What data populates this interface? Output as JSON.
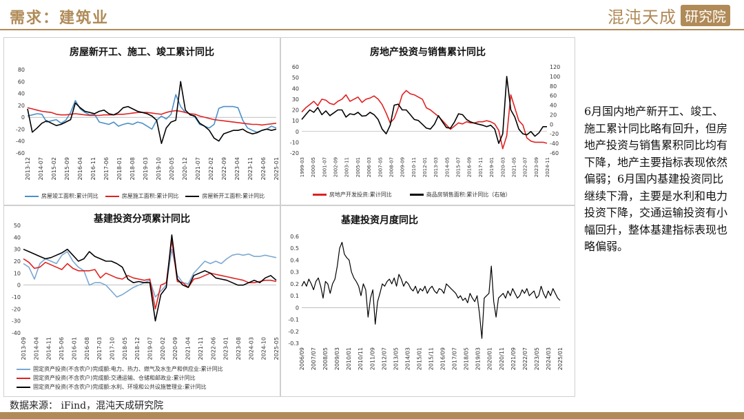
{
  "header": {
    "title": "需求：建筑业",
    "brand_main": "混沌天成",
    "brand_box": "研究院"
  },
  "side_text": "6月国内地产新开工、竣工、施工累计同比略有回升，但房地产投资与销售累积同比均有下降，地产主要指标表现依然偏弱；6月国内基建投资同比继续下滑，主要是水利和电力投资下降，交通运输投资有小幅回升，整体基建指标表现也略偏弱。",
  "source": "数据来源： iFind，混沌天成研究院",
  "colors": {
    "accent": "#b08a57",
    "blue": "#4a90c8",
    "red": "#e02020",
    "black": "#000000",
    "lightblue": "#7aa8d2"
  },
  "chart_data": [
    {
      "type": "line",
      "title": "房屋新开工、施工、竣工累计同比",
      "ylim": [
        -60,
        80
      ],
      "yticks": [
        -60,
        -40,
        -20,
        0,
        20,
        40,
        60,
        80
      ],
      "x_tick_labels": [
        "2013-12",
        "2014-07",
        "2015-02",
        "2015-09",
        "2016-04",
        "2016-11",
        "2017-06",
        "2018-01",
        "2018-08",
        "2019-03",
        "2019-10",
        "2020-05",
        "2020-12",
        "2021-07",
        "2022-02",
        "2022-09",
        "2023-04",
        "2023-11",
        "2024-06",
        "2025-01"
      ],
      "series": [
        {
          "name": "房屋竣工面积:累计同比",
          "color": "#4a90c8",
          "values": [
            2,
            4,
            6,
            5,
            -8,
            -6,
            -4,
            -10,
            -5,
            8,
            28,
            14,
            8,
            4,
            5,
            -8,
            -10,
            -12,
            -8,
            -15,
            -12,
            -10,
            -12,
            -8,
            -10,
            -15,
            -20,
            -5,
            2,
            -3,
            5,
            38,
            18,
            8,
            6,
            0,
            -12,
            -15,
            -18,
            -12,
            15,
            18,
            18,
            18,
            16,
            -5,
            -18,
            -22,
            -25,
            -22,
            -20,
            -15,
            -18
          ]
        },
        {
          "name": "房屋施工面积:累计同比",
          "color": "#e02020",
          "values": [
            16,
            14,
            12,
            10,
            9,
            8,
            5,
            4,
            4,
            5,
            6,
            5,
            4,
            3,
            3,
            3,
            4,
            4,
            4,
            5,
            5,
            6,
            7,
            8,
            8,
            8,
            7,
            6,
            5,
            8,
            10,
            11,
            10,
            8,
            6,
            5,
            2,
            0,
            -2,
            -4,
            -5,
            -6,
            -7,
            -8,
            -9,
            -10,
            -11,
            -12,
            -12,
            -13,
            -12,
            -11,
            -10
          ]
        },
        {
          "name": "房屋新开工面积:累计同比",
          "color": "#000000",
          "values": [
            14,
            -25,
            -18,
            -10,
            -6,
            -10,
            -14,
            -12,
            -8,
            -4,
            24,
            16,
            10,
            8,
            6,
            10,
            12,
            6,
            4,
            8,
            16,
            18,
            14,
            10,
            8,
            6,
            2,
            -5,
            -44,
            -18,
            -8,
            -5,
            60,
            12,
            4,
            2,
            -10,
            -15,
            -22,
            -35,
            -40,
            -28,
            -25,
            -22,
            -22,
            -20,
            -25,
            -28,
            -26,
            -22,
            -20,
            -22,
            -20
          ]
        }
      ]
    },
    {
      "type": "line",
      "title": "房地产投资与销售累计同比",
      "ylim": [
        -20,
        60
      ],
      "yticks": [
        -20,
        -10,
        0,
        10,
        20,
        30,
        40,
        50,
        60
      ],
      "y2lim": [
        -60,
        120
      ],
      "y2ticks": [
        -60,
        -40,
        -20,
        0,
        20,
        40,
        60,
        80,
        100,
        120
      ],
      "x_tick_labels": [
        "1999-03",
        "2000-05",
        "2001-07",
        "2002-09",
        "2003-11",
        "2005-01",
        "2006-03",
        "2007-05",
        "2008-07",
        "2009-09",
        "2010-11",
        "2012-01",
        "2013-03",
        "2014-05",
        "2015-07",
        "2016-09",
        "2017-11",
        "2019-01",
        "2020-03",
        "2021-05",
        "2022-07",
        "2023-09",
        "2024-11"
      ],
      "series": [
        {
          "name": "房地产开发投资:累计同比",
          "color": "#e02020",
          "axis": "left",
          "values": [
            18,
            22,
            25,
            28,
            24,
            30,
            29,
            26,
            25,
            28,
            30,
            34,
            28,
            30,
            32,
            27,
            30,
            31,
            33,
            30,
            25,
            17,
            8,
            12,
            22,
            34,
            38,
            35,
            34,
            32,
            30,
            22,
            20,
            17,
            14,
            10,
            6,
            2,
            5,
            8,
            7,
            9,
            8,
            8,
            9,
            9,
            10,
            9,
            7,
            1,
            -16,
            -4,
            34,
            22,
            10,
            6,
            -6,
            -9,
            -10,
            -10,
            -10,
            -11
          ]
        },
        {
          "name": "商品房销售面积:累计同比（右轴）",
          "color": "#000000",
          "axis": "right",
          "values": [
            10,
            20,
            30,
            25,
            35,
            20,
            28,
            18,
            24,
            30,
            30,
            15,
            22,
            20,
            25,
            17,
            18,
            25,
            20,
            10,
            -10,
            -20,
            -2,
            40,
            42,
            30,
            30,
            20,
            10,
            8,
            0,
            -8,
            -10,
            0,
            18,
            5,
            -7,
            -8,
            5,
            22,
            20,
            10,
            5,
            2,
            0,
            -2,
            -5,
            -2,
            -10,
            -40,
            -20,
            100,
            30,
            15,
            -10,
            -20,
            -22,
            -15,
            -25,
            -18,
            -5,
            -5
          ]
        }
      ]
    },
    {
      "type": "line",
      "title": "基建投资分项累计同比",
      "ylim": [
        -40,
        50
      ],
      "yticks": [
        -40,
        -30,
        -20,
        -10,
        0,
        10,
        20,
        30,
        40,
        50
      ],
      "x_tick_labels": [
        "2013-09",
        "2014-04",
        "2014-11",
        "2015-06",
        "2016-01",
        "2016-08",
        "2017-03",
        "2017-10",
        "2018-05",
        "2018-12",
        "2019-07",
        "2020-02",
        "2020-09",
        "2021-04",
        "2021-11",
        "2022-06",
        "2023-01",
        "2023-08",
        "2024-03",
        "2024-10",
        "2025-05"
      ],
      "series": [
        {
          "name": "固定资产投资(不含农户)完成额:电力、热力、燃气及水生产和供应业:累计同比",
          "color": "#7aa8d2",
          "values": [
            18,
            15,
            5,
            18,
            22,
            20,
            18,
            25,
            28,
            20,
            15,
            12,
            0,
            2,
            2,
            0,
            -5,
            -10,
            -8,
            -5,
            -2,
            0,
            2,
            4,
            -10,
            -5,
            0,
            30,
            8,
            2,
            1,
            10,
            15,
            20,
            18,
            20,
            18,
            22,
            25,
            26,
            25,
            26,
            24,
            24,
            25,
            24,
            23
          ]
        },
        {
          "name": "固定资产投资(不含农户)完成额:交通运输、仓储和邮政业:累计同比",
          "color": "#e02020",
          "values": [
            22,
            19,
            14,
            15,
            19,
            17,
            15,
            13,
            18,
            14,
            12,
            12,
            12,
            13,
            6,
            10,
            8,
            6,
            5,
            8,
            6,
            5,
            4,
            5,
            -20,
            0,
            2,
            38,
            3,
            2,
            -2,
            5,
            6,
            8,
            10,
            9,
            8,
            7,
            6,
            5,
            4,
            2,
            2,
            3,
            4,
            4,
            3
          ]
        },
        {
          "name": "固定资产投资(不含农户)完成额:水利、环境和公共设施管理业:累计同比",
          "color": "#000000",
          "values": [
            30,
            28,
            26,
            24,
            22,
            23,
            25,
            27,
            30,
            25,
            20,
            22,
            28,
            24,
            22,
            20,
            20,
            18,
            15,
            5,
            2,
            3,
            2,
            2,
            -30,
            -8,
            -2,
            42,
            5,
            0,
            -2,
            8,
            10,
            12,
            10,
            6,
            5,
            4,
            2,
            0,
            0,
            2,
            4,
            2,
            6,
            8,
            4
          ]
        }
      ]
    },
    {
      "type": "line",
      "title": "基建投资月度同比",
      "ylim": [
        -0.3,
        0.6
      ],
      "yticks": [
        -0.3,
        -0.2,
        -0.1,
        0,
        0.1,
        0.2,
        0.3,
        0.4,
        0.5,
        0.6
      ],
      "x_tick_labels": [
        "2006/09",
        "2007/07",
        "2008/05",
        "2009/03",
        "2010/01",
        "2010/11",
        "2011/09",
        "2012/07",
        "2013/05",
        "2014/03",
        "2015/01",
        "2015/11",
        "2016/09",
        "2017/07",
        "2018/05",
        "2019/03",
        "2020/01",
        "2020/11",
        "2021/09",
        "2022/07",
        "2023/05",
        "2024/03",
        "2025/01"
      ],
      "series": [
        {
          "name": "",
          "color": "#000000",
          "values": [
            0.18,
            0.22,
            0.18,
            0.24,
            0.2,
            0.15,
            0.22,
            0.25,
            0.18,
            0.08,
            0.22,
            0.2,
            0.12,
            0.2,
            0.24,
            0.35,
            0.5,
            0.55,
            0.45,
            0.42,
            0.4,
            0.3,
            0.25,
            0.22,
            0.18,
            0.1,
            0.2,
            0.15,
            -0.08,
            0.08,
            0.15,
            -0.14,
            0.05,
            0.12,
            0.2,
            0.18,
            0.22,
            0.24,
            0.2,
            0.25,
            0.18,
            0.28,
            0.24,
            0.18,
            0.22,
            0.2,
            0.16,
            0.14,
            0.18,
            0.12,
            0.16,
            0.14,
            0.18,
            0.12,
            0.16,
            0.18,
            0.14,
            0.12,
            0.16,
            0.15,
            0.12,
            0.2,
            0.18,
            0.16,
            0.14,
            0.12,
            0.08,
            0.1,
            0.06,
            0.08,
            0.04,
            0.12,
            0.08,
            0.05,
            0.1,
            -0.05,
            -0.26,
            0.08,
            0.1,
            0.12,
            0.35,
            0.05,
            -0.08,
            0.08,
            0.1,
            0.12,
            0.08,
            0.14,
            0.1,
            0.16,
            0.12,
            0.08,
            0.1,
            0.15,
            0.12,
            0.16,
            0.1,
            0.12,
            0.14,
            0.08,
            0.1,
            0.18,
            0.12,
            0.08,
            0.14,
            0.1,
            0.16,
            0.12,
            0.08,
            0.06
          ]
        }
      ]
    }
  ]
}
